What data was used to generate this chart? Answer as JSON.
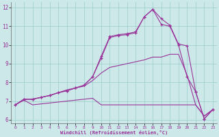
{
  "xlabel": "Windchill (Refroidissement éolien,°C)",
  "background_color": "#cce8e8",
  "line_color": "#993399",
  "grid_color": "#99cccc",
  "xlim": [
    -0.5,
    23.5
  ],
  "ylim": [
    5.8,
    12.3
  ],
  "x_ticks": [
    0,
    1,
    2,
    3,
    4,
    5,
    6,
    7,
    8,
    9,
    10,
    11,
    12,
    13,
    14,
    15,
    16,
    17,
    18,
    19,
    20,
    21,
    22,
    23
  ],
  "y_ticks": [
    6,
    7,
    8,
    9,
    10,
    11,
    12
  ],
  "line1_x": [
    0,
    1,
    2,
    3,
    4,
    5,
    6,
    7,
    8,
    9,
    10,
    11,
    12,
    13,
    14,
    15,
    16,
    17,
    18,
    19,
    20,
    21,
    22,
    23
  ],
  "line1_y": [
    6.8,
    7.05,
    6.8,
    6.85,
    6.9,
    6.95,
    7.0,
    7.05,
    7.1,
    7.15,
    6.8,
    6.8,
    6.8,
    6.8,
    6.8,
    6.8,
    6.8,
    6.8,
    6.8,
    6.8,
    6.8,
    6.8,
    6.2,
    6.55
  ],
  "line2_x": [
    0,
    1,
    2,
    3,
    4,
    5,
    6,
    7,
    8,
    9,
    10,
    11,
    12,
    13,
    14,
    15,
    16,
    17,
    18,
    19,
    20,
    21,
    22,
    23
  ],
  "line2_y": [
    6.8,
    7.1,
    7.1,
    7.2,
    7.3,
    7.45,
    7.6,
    7.7,
    7.8,
    8.1,
    8.5,
    8.8,
    8.9,
    9.0,
    9.1,
    9.2,
    9.35,
    9.35,
    9.5,
    9.5,
    8.4,
    6.8,
    6.2,
    6.55
  ],
  "line3_x": [
    0,
    1,
    2,
    3,
    4,
    5,
    6,
    7,
    8,
    9,
    10,
    11,
    12,
    13,
    14,
    15,
    16,
    17,
    18,
    19,
    20,
    21,
    22,
    23
  ],
  "line3_y": [
    6.8,
    7.1,
    7.1,
    7.2,
    7.3,
    7.45,
    7.55,
    7.7,
    7.85,
    8.3,
    9.3,
    10.4,
    10.5,
    10.55,
    10.65,
    11.5,
    11.9,
    11.1,
    11.0,
    10.0,
    8.3,
    7.5,
    6.05,
    6.55
  ],
  "line4_x": [
    0,
    1,
    2,
    3,
    4,
    5,
    6,
    7,
    8,
    9,
    10,
    11,
    12,
    13,
    14,
    15,
    16,
    17,
    18,
    19,
    20,
    21,
    22,
    23
  ],
  "line4_y": [
    6.8,
    7.1,
    7.1,
    7.2,
    7.3,
    7.45,
    7.55,
    7.7,
    7.85,
    8.3,
    9.4,
    10.45,
    10.55,
    10.6,
    10.7,
    11.5,
    11.9,
    11.4,
    11.05,
    10.05,
    9.95,
    7.5,
    6.05,
    6.55
  ]
}
